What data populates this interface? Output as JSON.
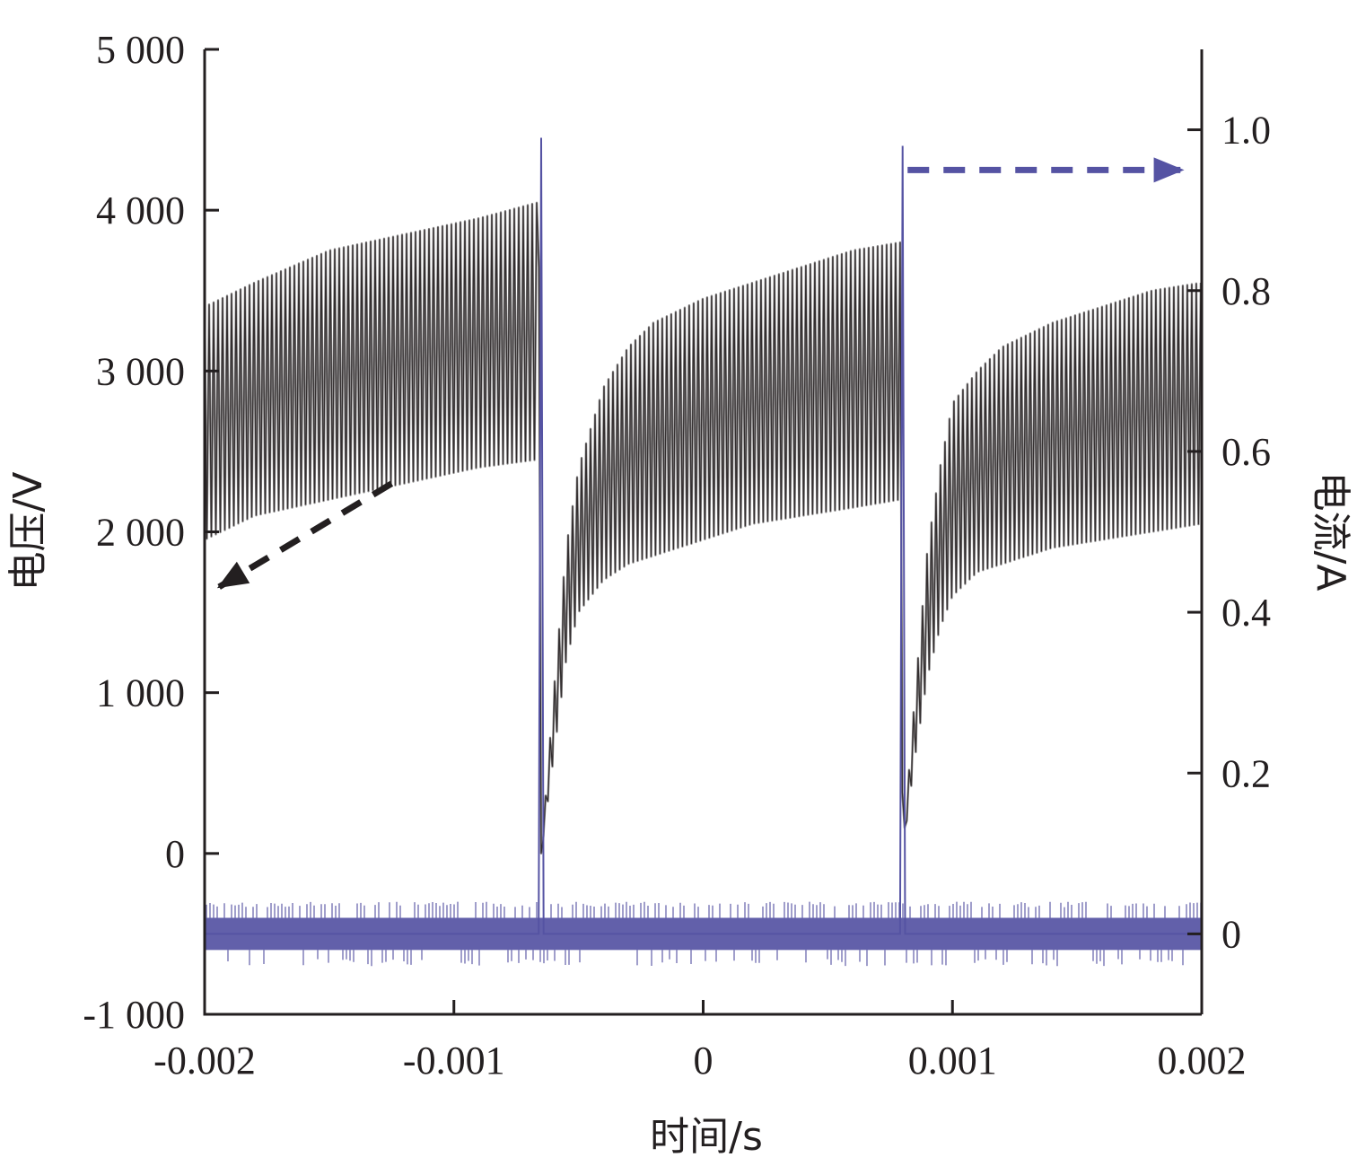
{
  "chart_data": {
    "type": "line",
    "xlabel": "时间/s",
    "ylabel_left": "电压/V",
    "ylabel_right": "电流/A",
    "xlim": [
      -0.002,
      0.002
    ],
    "ylim_left": [
      -1000,
      5000
    ],
    "ylim_right": [
      -0.1,
      1.1
    ],
    "x_ticks": [
      "-0.002",
      "-0.001",
      "0",
      "0.001",
      "0.002"
    ],
    "x_tick_values": [
      -0.002,
      -0.001,
      0,
      0.001,
      0.002
    ],
    "y_left_ticks": [
      "-1 000",
      "0",
      "1 000",
      "2 000",
      "3 000",
      "4 000",
      "5 000"
    ],
    "y_left_tick_values": [
      -1000,
      0,
      1000,
      2000,
      3000,
      4000,
      5000
    ],
    "y_right_ticks": [
      "0",
      "0.2",
      "0.4",
      "0.6",
      "0.8",
      "1.0"
    ],
    "y_right_tick_values": [
      0,
      0.2,
      0.4,
      0.6,
      0.8,
      1.0
    ],
    "grid": false,
    "legend": "none",
    "series": [
      {
        "axis": "left",
        "color": "#231f20",
        "pulse_times": [
          -0.00065,
          0.0008
        ],
        "pulse_period": 0.00145,
        "oscillation_period": 1.8e-05,
        "x": [
          -0.002,
          -0.0018,
          -0.0015,
          -0.0012,
          -0.0009,
          -0.00066,
          -0.00065,
          -0.0006,
          -0.00055,
          -0.0005,
          -0.0004,
          -0.0003,
          -0.0002,
          0,
          0.0002,
          0.0004,
          0.0006,
          0.00079,
          0.0008,
          0.00085,
          0.0009,
          0.00095,
          0.001,
          0.0011,
          0.0012,
          0.0014,
          0.0016,
          0.0018,
          0.002
        ],
        "y_max": [
          3400,
          3550,
          3750,
          3850,
          3950,
          4050,
          0,
          1000,
          1900,
          2400,
          2900,
          3150,
          3300,
          3450,
          3550,
          3650,
          3750,
          3800,
          0,
          1000,
          1900,
          2400,
          2800,
          3000,
          3150,
          3300,
          3400,
          3500,
          3550
        ],
        "y_min": [
          1950,
          2100,
          2200,
          2300,
          2400,
          2450,
          0,
          600,
          1200,
          1500,
          1700,
          1800,
          1850,
          1950,
          2050,
          2100,
          2150,
          2200,
          0,
          600,
          1100,
          1400,
          1600,
          1750,
          1800,
          1900,
          1950,
          2000,
          2050
        ]
      },
      {
        "axis": "right",
        "color": "#5553a3",
        "x": [
          -0.002,
          -0.00066,
          -0.00065,
          -0.00064,
          0.00079,
          0.0008,
          0.00081,
          0.002
        ],
        "y": [
          0,
          0,
          0.99,
          0,
          0,
          0.98,
          0,
          0
        ],
        "noise_band": [
          -0.02,
          0.02
        ],
        "noise_spikes": [
          -0.04,
          0.04
        ]
      }
    ],
    "annotations": [
      {
        "type": "dashed-arrow",
        "color": "#231f20",
        "from": [
          -0.00125,
          2300
        ],
        "to": [
          -0.00195,
          1650
        ]
      },
      {
        "type": "dashed-arrow",
        "color": "#5553a3",
        "axis": "right",
        "from": [
          0.00082,
          0.95
        ],
        "to": [
          0.00193,
          0.95
        ]
      }
    ]
  }
}
